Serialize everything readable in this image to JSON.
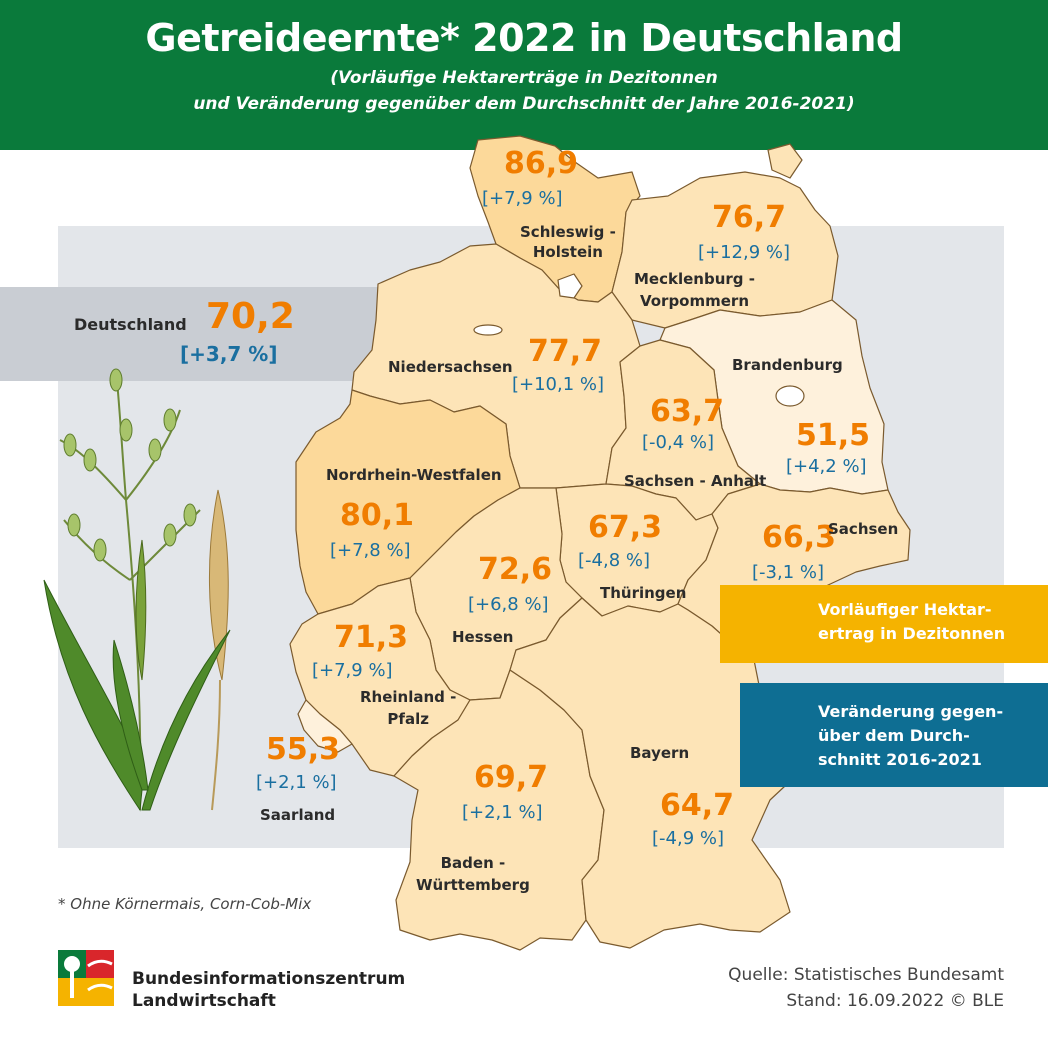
{
  "header": {
    "title": "Getreideernte* 2022 in Deutschland",
    "subtitle_line1": "(Vorläufige Hektarerträge in Dezitonnen",
    "subtitle_line2": "und Veränderung gegenüber dem Durchschnitt der Jahre 2016-2021)"
  },
  "germany": {
    "label": "Deutschland",
    "value": "70,2",
    "change": "[+3,7 %]"
  },
  "states": {
    "sh": {
      "name": "Schleswig -\nHolstein",
      "value": "86,9",
      "change": "[+7,9 %]"
    },
    "mv": {
      "name": "Mecklenburg -\nVorpommern",
      "value": "76,7",
      "change": "[+12,9 %]"
    },
    "ni": {
      "name": "Niedersachsen",
      "value": "77,7",
      "change": "[+10,1 %]"
    },
    "bb": {
      "name": "Brandenburg",
      "value": "51,5",
      "change": "[+4,2 %]"
    },
    "st": {
      "name": "Sachsen - Anhalt",
      "value": "63,7",
      "change": "[-0,4 %]"
    },
    "nw": {
      "name": "Nordrhein-Westfalen",
      "value": "80,1",
      "change": "[+7,8 %]"
    },
    "th": {
      "name": "Thüringen",
      "value": "67,3",
      "change": "[-4,8 %]"
    },
    "sn": {
      "name": "Sachsen",
      "value": "66,3",
      "change": "[-3,1 %]"
    },
    "he": {
      "name": "Hessen",
      "value": "72,6",
      "change": "[+6,8 %]"
    },
    "rp": {
      "name": "Rheinland -\nPfalz",
      "value": "71,3",
      "change": "[+7,9 %]"
    },
    "sl": {
      "name": "Saarland",
      "value": "55,3",
      "change": "[+2,1 %]"
    },
    "bw": {
      "name": "Baden -\nWürttemberg",
      "value": "69,7",
      "change": "[+2,1 %]"
    },
    "by": {
      "name": "Bayern",
      "value": "64,7",
      "change": "[-4,9 %]"
    }
  },
  "legend": {
    "yield": "Vorläufiger Hektar-\nertrag in Dezitonnen",
    "change": "Veränderung gegen-\nüber dem Durch-\nschnitt 2016-2021"
  },
  "colors": {
    "header": "#0a7a3b",
    "value": "#f07d00",
    "change": "#1a6fa0",
    "legend_yield": "#f5b300",
    "legend_change": "#0e6e93"
  },
  "footnote": "* Ohne Körnermais, Corn-Cob-Mix",
  "organization": {
    "line1": "Bundesinformationszentrum",
    "line2": "Landwirtschaft"
  },
  "source": {
    "line1": "Quelle: Statistisches Bundesamt",
    "line2": "Stand: 16.09.2022 © BLE"
  }
}
